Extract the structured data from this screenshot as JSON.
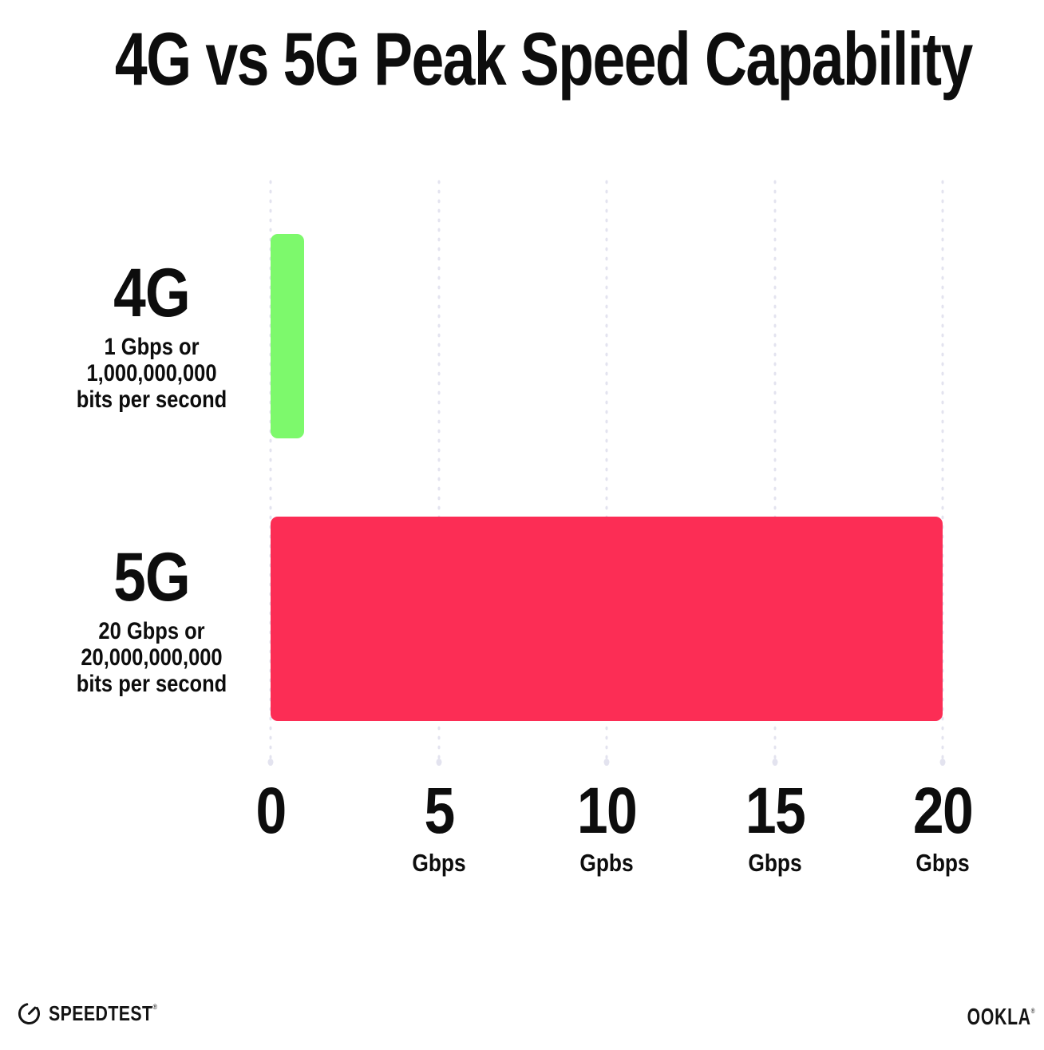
{
  "title": "4G vs 5G Peak Speed Capability",
  "chart_data": {
    "type": "bar",
    "orientation": "horizontal",
    "title": "4G vs 5G Peak Speed Capability",
    "categories": [
      "4G",
      "5G"
    ],
    "values": [
      1,
      20
    ],
    "unit": "Gbps",
    "xlim": [
      0,
      20
    ],
    "x_tick_step": 5,
    "gridlines": "dotted-vertical",
    "legend": "none",
    "bars": [
      {
        "label": "4G",
        "value": 1,
        "color": "#7DF96C",
        "description_lines": [
          "1 Gbps or",
          "1,000,000,000",
          "bits per second"
        ]
      },
      {
        "label": "5G",
        "value": 20,
        "color": "#FC2D55",
        "description_lines": [
          "20 Gbps or",
          "20,000,000,000",
          "bits per second"
        ]
      }
    ],
    "x_ticks": [
      {
        "value": "0",
        "unit": ""
      },
      {
        "value": "5",
        "unit": "Gbps"
      },
      {
        "value": "10",
        "unit": "Gpbs"
      },
      {
        "value": "15",
        "unit": "Gbps"
      },
      {
        "value": "20",
        "unit": "Gbps"
      }
    ]
  },
  "footer": {
    "speedtest_label": "SPEEDTEST",
    "speedtest_trademark": "®",
    "ookla_label": "OOKLA",
    "ookla_trademark": "®"
  },
  "colors": {
    "background": "#FFFFFF",
    "text": "#0D0D0D",
    "bar-4g": "#7DF96C",
    "bar-5g": "#FC2D55",
    "gridline": "#E3E3EF",
    "logo": "#141414"
  }
}
